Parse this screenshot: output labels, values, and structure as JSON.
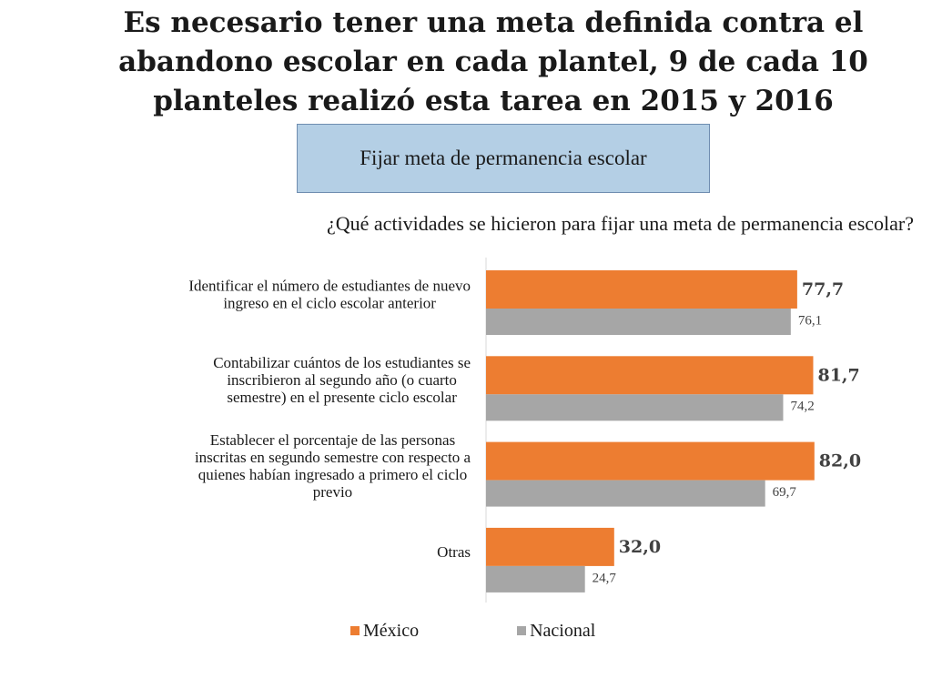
{
  "slide": {
    "title_lines": [
      "Es necesario tener una meta definida contra el",
      "abandono escolar en cada plantel, 9 de cada 10",
      "planteles realizó esta tarea en 2015 y 2016"
    ],
    "subtitle": "Fijar meta de permanencia escolar",
    "question": "¿Qué actividades se hicieron para fijar una meta de permanencia escolar?"
  },
  "colors": {
    "mexico": "#ed7d31",
    "nacional": "#a6a6a6",
    "axis": "#d9d9d9",
    "subtitle_fill": "#b4cfe5"
  },
  "chart_data": {
    "type": "bar",
    "orientation": "horizontal",
    "title": "",
    "xlabel": "",
    "ylabel": "",
    "xlim": [
      0,
      100
    ],
    "grid": false,
    "legend": "bottom",
    "categories": [
      [
        "Identificar el número de estudiantes de nuevo",
        "ingreso en el ciclo escolar anterior"
      ],
      [
        "Contabilizar cuántos de los estudiantes se",
        "inscribieron al segundo año (o cuarto",
        "semestre) en el presente ciclo escolar"
      ],
      [
        "Establecer el porcentaje de las personas",
        "inscritas en segundo semestre con respecto a",
        "quienes habían ingresado a primero el ciclo",
        "previo"
      ],
      [
        "Otras"
      ]
    ],
    "series": [
      {
        "name": "México",
        "values": [
          77.7,
          81.7,
          82.0,
          32.0
        ],
        "labels": [
          "77,7",
          "81,7",
          "82,0",
          "32,0"
        ]
      },
      {
        "name": "Nacional",
        "values": [
          76.1,
          74.2,
          69.7,
          24.7
        ],
        "labels": [
          "76,1",
          "74,2",
          "69,7",
          "24,7"
        ]
      }
    ]
  }
}
